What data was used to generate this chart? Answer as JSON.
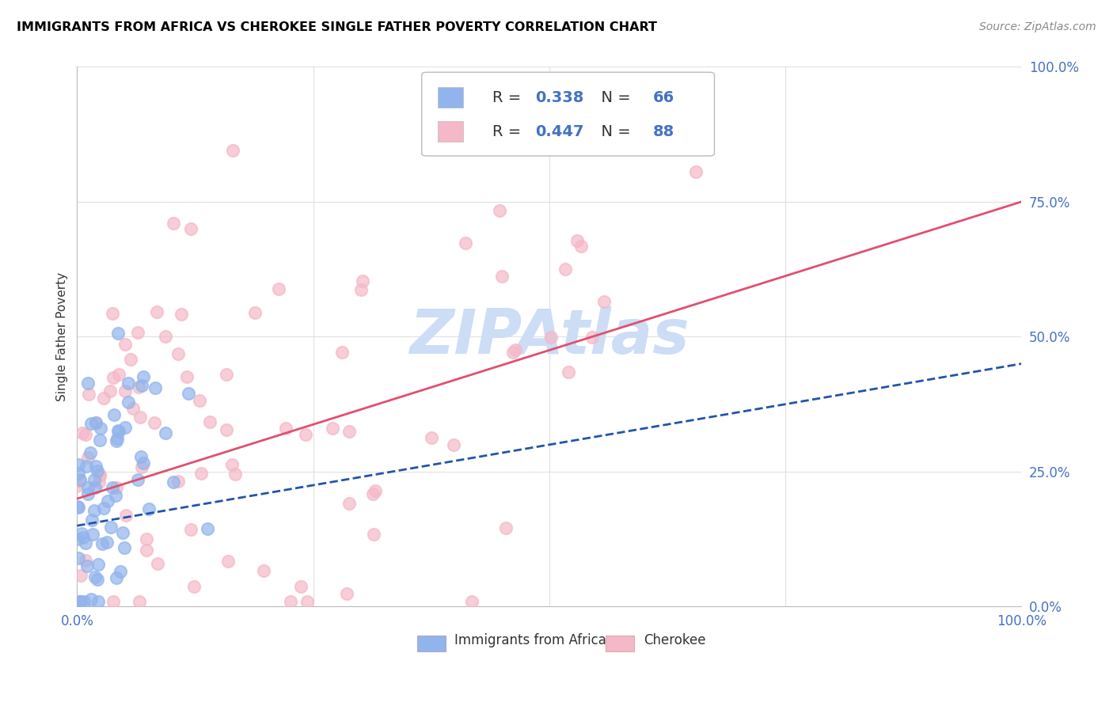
{
  "title": "IMMIGRANTS FROM AFRICA VS CHEROKEE SINGLE FATHER POVERTY CORRELATION CHART",
  "source": "Source: ZipAtlas.com",
  "ylabel": "Single Father Poverty",
  "ytick_labels": [
    "0.0%",
    "25.0%",
    "50.0%",
    "75.0%",
    "100.0%"
  ],
  "ytick_values": [
    0.0,
    0.25,
    0.5,
    0.75,
    1.0
  ],
  "xlim": [
    0.0,
    1.0
  ],
  "ylim": [
    0.0,
    1.0
  ],
  "legend_color1": "#92b4ec",
  "legend_color2": "#f4b8c8",
  "scatter1_color": "#92b4ec",
  "scatter2_color": "#f4b8c8",
  "line1_color": "#2255aa",
  "line2_color": "#e05070",
  "watermark": "ZIPAtlas",
  "watermark_color": "#ccddf5",
  "bottom_legend1": "Immigrants from Africa",
  "bottom_legend2": "Cherokee",
  "R1": 0.338,
  "N1": 66,
  "R2": 0.447,
  "N2": 88,
  "bg_color": "#ffffff",
  "grid_color": "#e0e0e0",
  "tick_color": "#4472c4",
  "title_color": "#000000",
  "source_color": "#888888"
}
